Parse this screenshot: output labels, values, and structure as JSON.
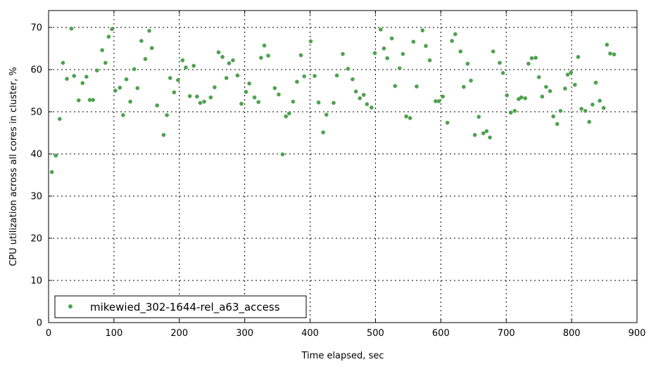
{
  "chart_data": {
    "type": "scatter",
    "xlabel": "Time elapsed, sec",
    "ylabel": "CPU utilization across all cores in cluster, %",
    "xlim": [
      0,
      900
    ],
    "ylim": [
      0,
      74
    ],
    "xticks": [
      0,
      100,
      200,
      300,
      400,
      500,
      600,
      700,
      800,
      900
    ],
    "yticks": [
      0,
      10,
      20,
      30,
      40,
      50,
      60,
      70
    ],
    "grid": true,
    "legend_position": "bottom-left",
    "series": [
      {
        "name": "mikewied_302-1644-rel_a63_access",
        "color": "#4ea24e",
        "points": [
          [
            5,
            35.7
          ],
          [
            11,
            39.6
          ],
          [
            17,
            48.3
          ],
          [
            22,
            61.6
          ],
          [
            28,
            57.8
          ],
          [
            35,
            69.7
          ],
          [
            39,
            58.5
          ],
          [
            46,
            52.7
          ],
          [
            52,
            56.8
          ],
          [
            58,
            58.3
          ],
          [
            63,
            52.8
          ],
          [
            68,
            52.8
          ],
          [
            74,
            59.8
          ],
          [
            82,
            64.6
          ],
          [
            87,
            61.6
          ],
          [
            92,
            67.8
          ],
          [
            97,
            69.6
          ],
          [
            102,
            55.0
          ],
          [
            109,
            55.7
          ],
          [
            114,
            49.2
          ],
          [
            119,
            57.7
          ],
          [
            125,
            52.4
          ],
          [
            131,
            60.1
          ],
          [
            136,
            55.6
          ],
          [
            142,
            66.8
          ],
          [
            148,
            62.5
          ],
          [
            154,
            69.2
          ],
          [
            158,
            65.1
          ],
          [
            166,
            51.5
          ],
          [
            176,
            44.5
          ],
          [
            181,
            49.2
          ],
          [
            186,
            58.0
          ],
          [
            192,
            54.6
          ],
          [
            198,
            57.5
          ],
          [
            205,
            62.2
          ],
          [
            210,
            60.5
          ],
          [
            216,
            53.7
          ],
          [
            222,
            60.9
          ],
          [
            227,
            53.6
          ],
          [
            232,
            52.1
          ],
          [
            238,
            52.4
          ],
          [
            248,
            53.4
          ],
          [
            254,
            55.8
          ],
          [
            260,
            64.1
          ],
          [
            266,
            63.0
          ],
          [
            272,
            58.0
          ],
          [
            276,
            61.5
          ],
          [
            282,
            62.2
          ],
          [
            289,
            58.6
          ],
          [
            295,
            51.9
          ],
          [
            302,
            54.7
          ],
          [
            307,
            56.7
          ],
          [
            315,
            53.4
          ],
          [
            321,
            52.3
          ],
          [
            325,
            62.8
          ],
          [
            330,
            65.7
          ],
          [
            336,
            63.3
          ],
          [
            346,
            55.6
          ],
          [
            352,
            54.1
          ],
          [
            358,
            39.9
          ],
          [
            363,
            48.9
          ],
          [
            368,
            49.6
          ],
          [
            374,
            52.4
          ],
          [
            380,
            57.1
          ],
          [
            386,
            63.4
          ],
          [
            391,
            58.4
          ],
          [
            401,
            66.7
          ],
          [
            407,
            58.5
          ],
          [
            413,
            52.2
          ],
          [
            420,
            45.1
          ],
          [
            425,
            49.3
          ],
          [
            436,
            52.1
          ],
          [
            441,
            58.6
          ],
          [
            450,
            63.7
          ],
          [
            458,
            60.2
          ],
          [
            465,
            57.7
          ],
          [
            470,
            54.8
          ],
          [
            476,
            53.2
          ],
          [
            482,
            54.0
          ],
          [
            487,
            51.8
          ],
          [
            494,
            51.0
          ],
          [
            499,
            63.9
          ],
          [
            508,
            69.5
          ],
          [
            513,
            65.0
          ],
          [
            518,
            62.7
          ],
          [
            525,
            67.4
          ],
          [
            530,
            56.1
          ],
          [
            537,
            60.3
          ],
          [
            542,
            63.7
          ],
          [
            547,
            48.9
          ],
          [
            553,
            48.5
          ],
          [
            558,
            66.6
          ],
          [
            563,
            56.0
          ],
          [
            572,
            69.3
          ],
          [
            577,
            65.6
          ],
          [
            583,
            62.2
          ],
          [
            592,
            52.5
          ],
          [
            597,
            52.5
          ],
          [
            603,
            53.6
          ],
          [
            610,
            47.4
          ],
          [
            617,
            66.8
          ],
          [
            622,
            68.4
          ],
          [
            630,
            64.3
          ],
          [
            635,
            55.9
          ],
          [
            641,
            61.4
          ],
          [
            646,
            57.4
          ],
          [
            652,
            44.5
          ],
          [
            658,
            48.8
          ],
          [
            665,
            44.9
          ],
          [
            670,
            45.4
          ],
          [
            675,
            43.9
          ],
          [
            680,
            64.3
          ],
          [
            690,
            61.6
          ],
          [
            695,
            59.2
          ],
          [
            701,
            53.9
          ],
          [
            707,
            49.8
          ],
          [
            713,
            50.2
          ],
          [
            719,
            53.0
          ],
          [
            723,
            53.4
          ],
          [
            729,
            53.2
          ],
          [
            734,
            61.4
          ],
          [
            739,
            62.7
          ],
          [
            745,
            62.8
          ],
          [
            750,
            58.2
          ],
          [
            755,
            53.6
          ],
          [
            761,
            55.9
          ],
          [
            767,
            54.9
          ],
          [
            772,
            48.9
          ],
          [
            778,
            47.1
          ],
          [
            783,
            50.2
          ],
          [
            790,
            55.5
          ],
          [
            794,
            58.8
          ],
          [
            799,
            59.3
          ],
          [
            805,
            56.4
          ],
          [
            810,
            63.0
          ],
          [
            815,
            50.7
          ],
          [
            821,
            50.2
          ],
          [
            827,
            47.6
          ],
          [
            832,
            51.7
          ],
          [
            837,
            56.9
          ],
          [
            843,
            52.6
          ],
          [
            849,
            50.9
          ],
          [
            854,
            65.9
          ],
          [
            859,
            63.8
          ],
          [
            865,
            63.6
          ]
        ]
      }
    ]
  }
}
